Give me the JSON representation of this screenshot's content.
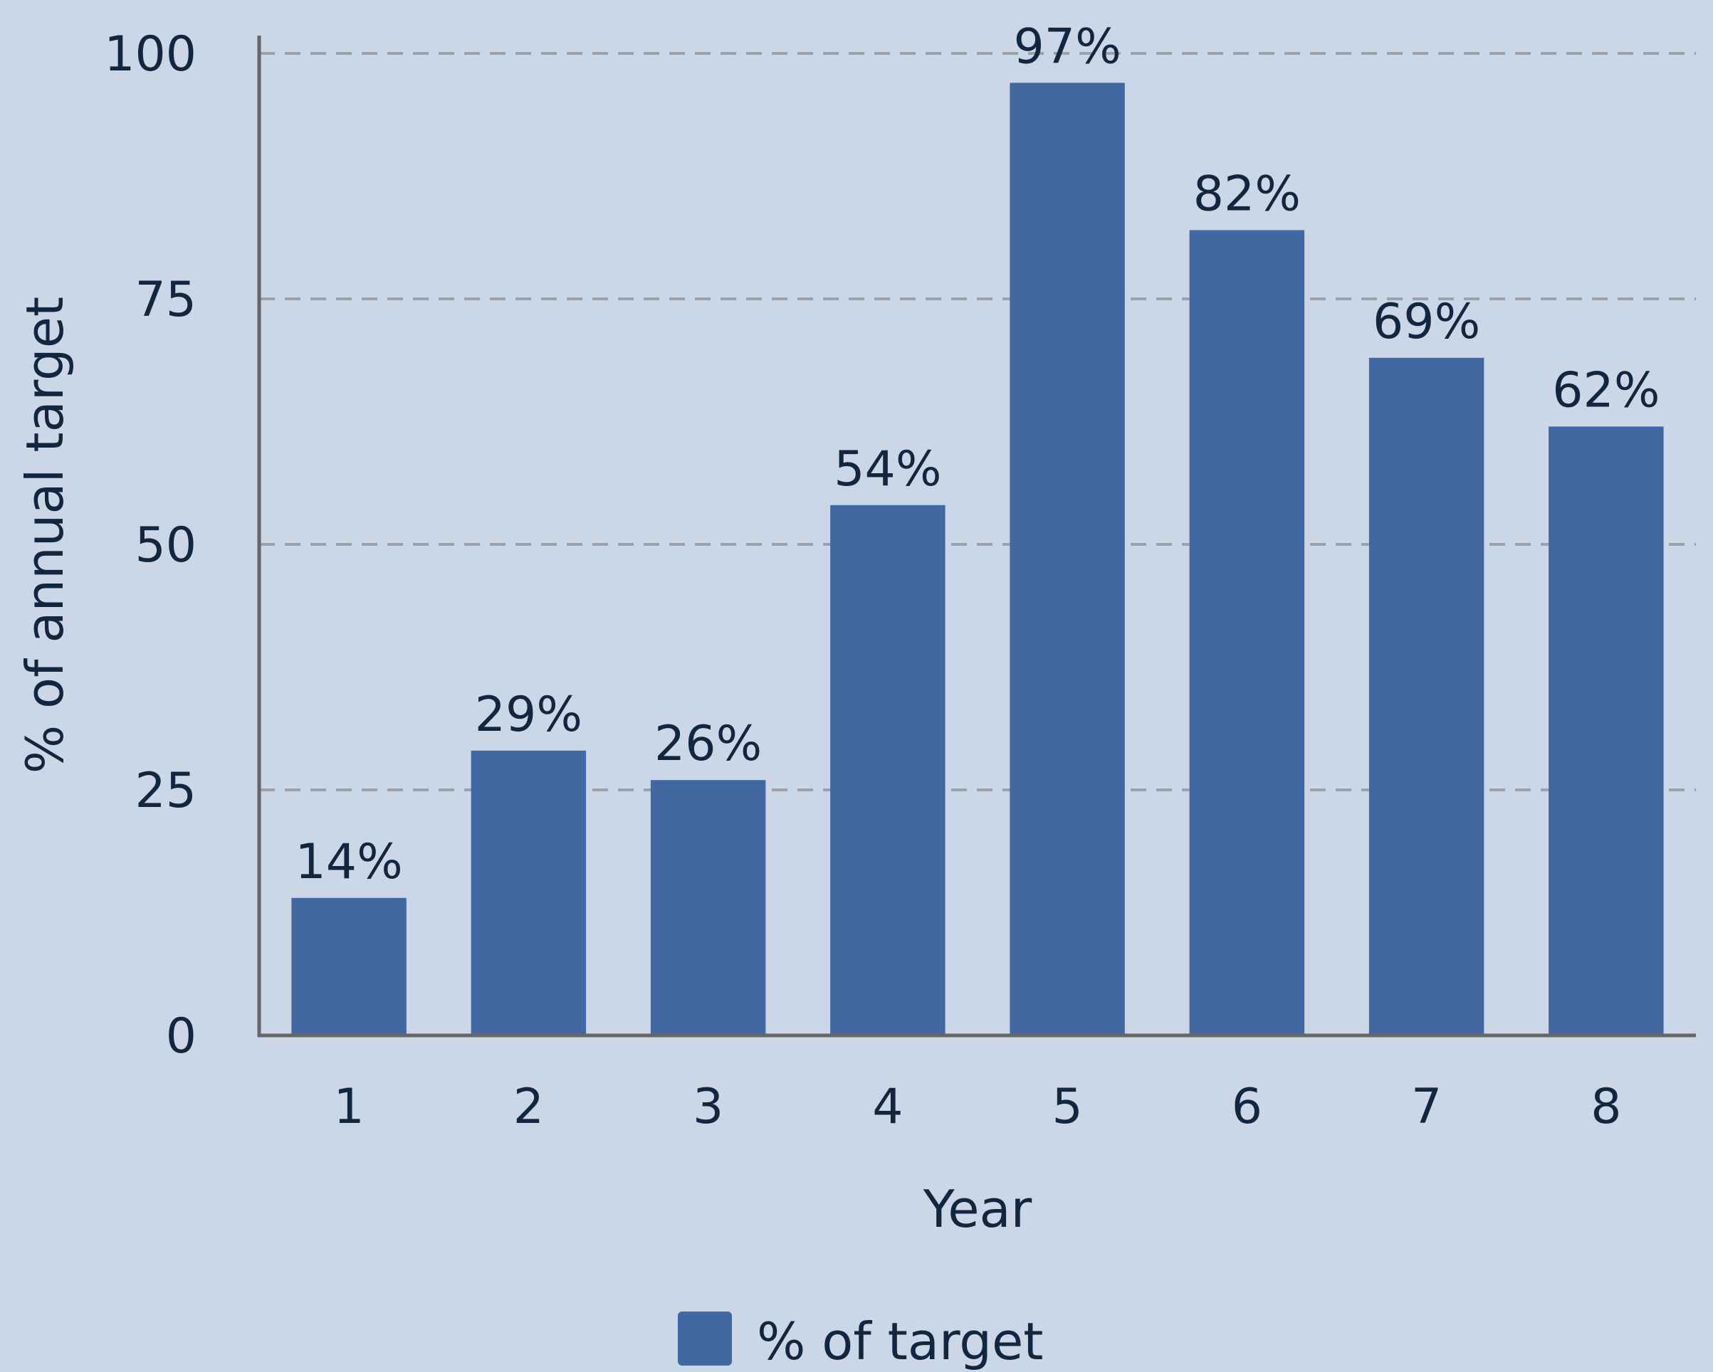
{
  "colors": {
    "background": "#cbd7e6",
    "bar": "#4268a1",
    "text": "#12263f",
    "axis": "#666666",
    "grid": "#9aa2ac"
  },
  "chart_data": {
    "type": "bar",
    "categories": [
      "1",
      "2",
      "3",
      "4",
      "5",
      "6",
      "7",
      "8"
    ],
    "series": [
      {
        "name": "% of target",
        "values": [
          14,
          29,
          26,
          54,
          97,
          82,
          69,
          62
        ],
        "labels": [
          "14%",
          "29%",
          "26%",
          "54%",
          "97%",
          "82%",
          "69%",
          "62%"
        ]
      }
    ],
    "xlabel": "Year",
    "ylabel": "% of annual target",
    "ylim": [
      0,
      100
    ],
    "yticks": [
      0,
      25,
      50,
      75,
      100
    ],
    "grid": "horizontal dashed",
    "legend": "bottom-center"
  }
}
